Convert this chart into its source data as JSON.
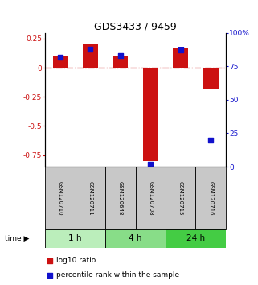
{
  "title": "GDS3433 / 9459",
  "samples": [
    "GSM120710",
    "GSM120711",
    "GSM120648",
    "GSM120708",
    "GSM120715",
    "GSM120716"
  ],
  "log10_ratio": [
    0.1,
    0.2,
    0.1,
    -0.8,
    0.17,
    -0.18
  ],
  "percentile_rank": [
    82,
    88,
    83,
    2,
    87,
    20
  ],
  "time_groups": [
    {
      "label": "1 h",
      "start": 0,
      "end": 2,
      "color": "#bbeebb"
    },
    {
      "label": "4 h",
      "start": 2,
      "end": 4,
      "color": "#88dd88"
    },
    {
      "label": "24 h",
      "start": 4,
      "end": 6,
      "color": "#44cc44"
    }
  ],
  "ylim_left": [
    -0.85,
    0.3
  ],
  "ylim_right": [
    0,
    110.8333
  ],
  "yticks_left": [
    0.25,
    0.0,
    -0.25,
    -0.5,
    -0.75
  ],
  "ytick_labels_left": [
    "0.25",
    "0",
    "-0.25",
    "-0.5",
    "-0.75"
  ],
  "yticks_right_vals": [
    0,
    25,
    50,
    75,
    100
  ],
  "ytick_labels_right": [
    "0",
    "25",
    "50",
    "75",
    "100%"
  ],
  "bar_color": "#cc1111",
  "dot_color": "#1111cc",
  "zero_line_color": "#cc1111",
  "bg_color": "#ffffff",
  "sample_box_color": "#c8c8c8",
  "bar_width": 0.5,
  "dot_size": 18
}
